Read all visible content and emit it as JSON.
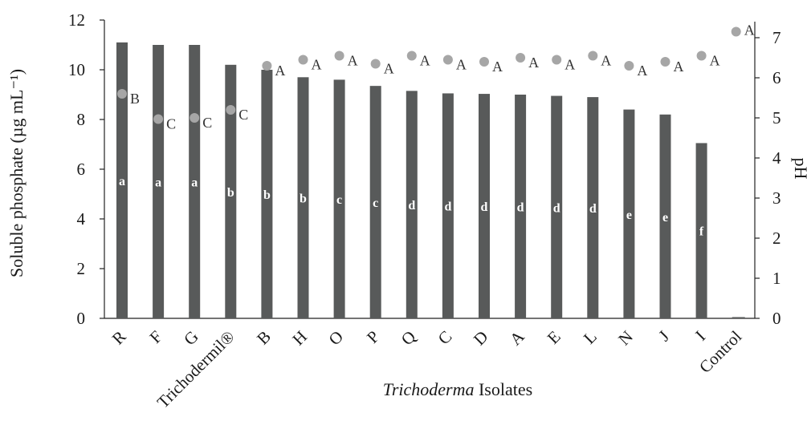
{
  "chart_data": {
    "type": "bar",
    "categories": [
      "R",
      "F",
      "G",
      "Trichodermil®",
      "B",
      "H",
      "O",
      "P",
      "Q",
      "C",
      "D",
      "A",
      "E",
      "L",
      "N",
      "J",
      "I",
      "Control"
    ],
    "series": [
      {
        "axis": "left",
        "kind": "bar",
        "values": [
          11.1,
          11.0,
          11.0,
          10.2,
          10.0,
          9.7,
          9.6,
          9.35,
          9.15,
          9.05,
          9.03,
          9.0,
          8.95,
          8.9,
          8.4,
          8.2,
          7.05,
          0.05
        ],
        "labels": [
          "a",
          "a",
          "a",
          "b",
          "b",
          "b",
          "c",
          "c",
          "d",
          "d",
          "d",
          "d",
          "d",
          "d",
          "e",
          "e",
          "f",
          ""
        ]
      },
      {
        "axis": "right",
        "kind": "point",
        "values": [
          5.6,
          4.97,
          5.0,
          5.2,
          6.3,
          6.45,
          6.55,
          6.35,
          6.55,
          6.45,
          6.4,
          6.5,
          6.45,
          6.55,
          6.3,
          6.4,
          6.55,
          7.15
        ],
        "labels": [
          "B",
          "C",
          "C",
          "C",
          "A",
          "A",
          "A",
          "A",
          "A",
          "A",
          "A",
          "A",
          "A",
          "A",
          "A",
          "A",
          "A",
          "A"
        ]
      }
    ],
    "ylabel": "Soluble phosphate (µg mL⁻¹)",
    "y2label": "pH",
    "xlabel_italic": "Trichoderma",
    "xlabel_rest": " Isolates",
    "ylim": [
      0,
      12
    ],
    "y2lim": [
      0,
      7.4
    ],
    "yticks": [
      0,
      2,
      4,
      6,
      8,
      10,
      12
    ],
    "y2ticks": [
      0,
      1,
      2,
      3,
      4,
      5,
      6,
      7
    ],
    "grid": false,
    "colors": {
      "bar": "#585a5a",
      "point": "#a6a6a6",
      "bar_text": "#ffffff",
      "axis": "#222222"
    }
  }
}
